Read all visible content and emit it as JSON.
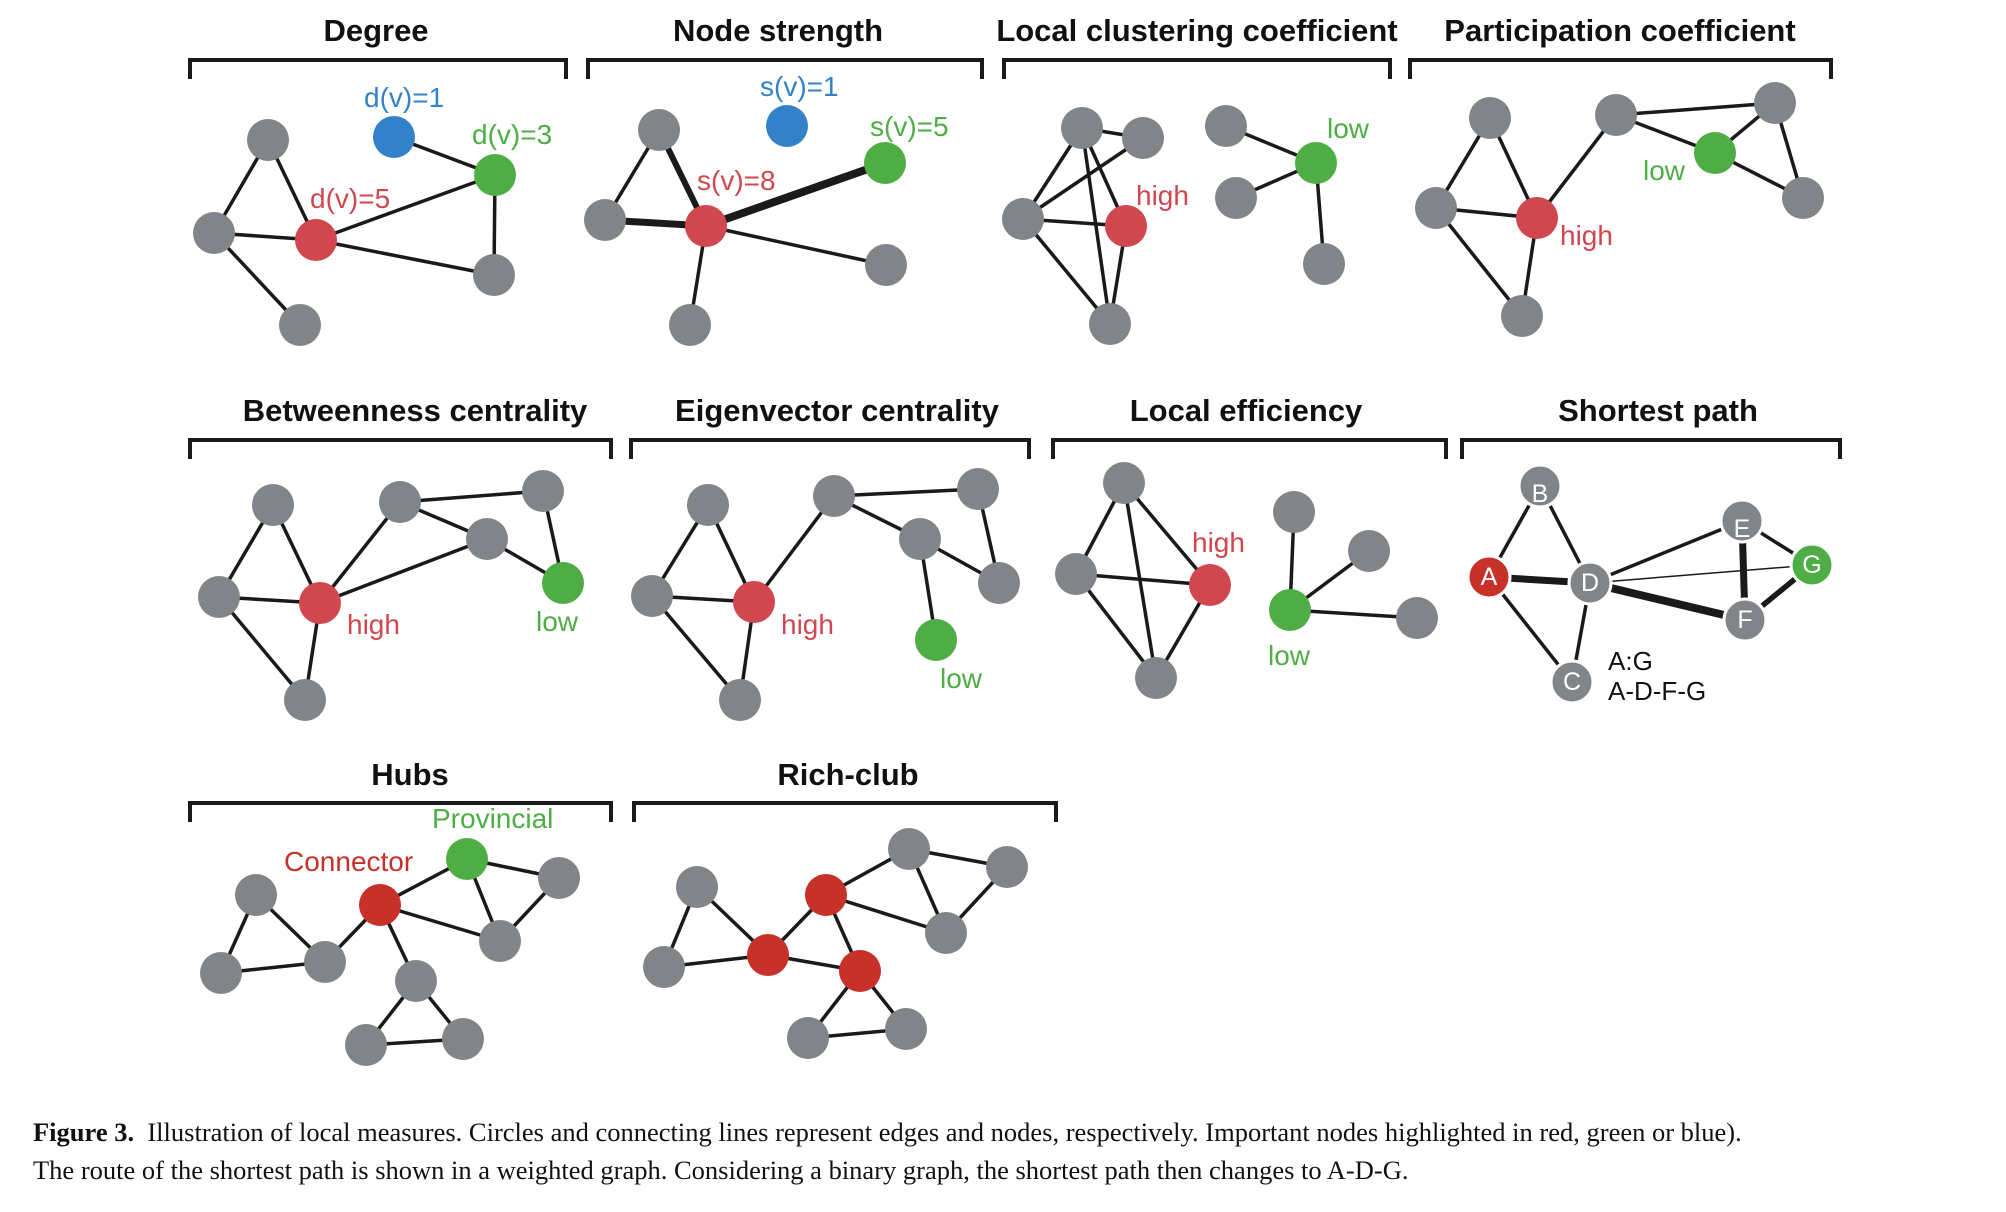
{
  "colors": {
    "gray": "#818589",
    "red": "#d1474f",
    "dark_red": "#c8302a",
    "green": "#4ead45",
    "blue": "#3382c9",
    "edge": "#1a1a1a"
  },
  "panels": {
    "degree": {
      "title": "Degree",
      "labels": [
        "d(v)=1",
        "d(v)=3",
        "d(v)=5"
      ]
    },
    "node_strength": {
      "title": "Node strength",
      "labels": [
        "s(v)=1",
        "s(v)=5",
        "s(v)=8"
      ]
    },
    "local_clustering": {
      "title": "Local clustering coefficient",
      "labels": [
        "high",
        "low"
      ]
    },
    "participation": {
      "title": "Participation coefficient",
      "labels": [
        "low",
        "high"
      ]
    },
    "betweenness": {
      "title": "Betweenness centrality",
      "labels": [
        "high",
        "low"
      ]
    },
    "eigenvector": {
      "title": "Eigenvector  centrality",
      "labels": [
        "high",
        "low"
      ]
    },
    "local_efficiency": {
      "title": "Local efficiency",
      "labels": [
        "high",
        "low"
      ]
    },
    "shortest_path": {
      "title": "Shortest path",
      "node_names": [
        "B",
        "E",
        "A",
        "D",
        "G",
        "F",
        "C"
      ],
      "labels": [
        "A:G",
        "A-D-F-G"
      ]
    },
    "hubs": {
      "title": "Hubs",
      "labels": [
        "Provincial",
        "Connector"
      ]
    },
    "rich_club": {
      "title": "Rich-club"
    }
  },
  "caption": {
    "figure_label": "Figure 3.",
    "line1": "Illustration of local measures. Circles and connecting lines represent edges and nodes, respectively. Important nodes highlighted in red, green or blue).",
    "line2": "The route of the shortest path is shown in a weighted graph. Considering a binary graph, the shortest path then changes to A-D-G."
  }
}
